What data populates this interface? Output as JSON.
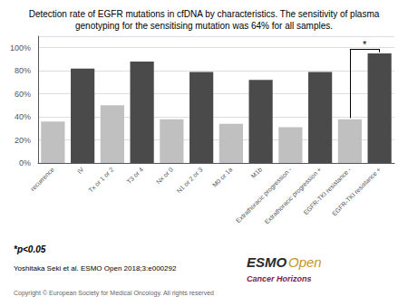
{
  "chart_data": {
    "type": "bar",
    "title": "Detection rate of EGFR mutations in cfDNA by characteristics. The sensitivity of plasma\ngenotyping for the sensitising mutation was 64% for all samples.",
    "categories": [
      "recurrence",
      "IV",
      "Tx or 1 or 2",
      "T3 or 4",
      "Nx or 0",
      "N1 or 2 or 3",
      "M0 or 1a",
      "M1b",
      "Extrathoracic progression -",
      "Extrathoracic progression +",
      "EGFR-TKI resistance -",
      "EGFR-TKI resistance +"
    ],
    "values": [
      0.36,
      0.82,
      0.5,
      0.88,
      0.38,
      0.79,
      0.34,
      0.72,
      0.31,
      0.79,
      0.38,
      0.95
    ],
    "colors": [
      "#c0c0c0",
      "#4a4a4a",
      "#c0c0c0",
      "#4a4a4a",
      "#c0c0c0",
      "#4a4a4a",
      "#c0c0c0",
      "#4a4a4a",
      "#c0c0c0",
      "#4a4a4a",
      "#c0c0c0",
      "#4a4a4a"
    ],
    "ylim": [
      0,
      1.1
    ],
    "yticks": [
      {
        "value": 0,
        "label": "0%"
      },
      {
        "value": 0.2,
        "label": "20%"
      },
      {
        "value": 0.4,
        "label": "40%"
      },
      {
        "value": 0.6,
        "label": "60%"
      },
      {
        "value": 0.8,
        "label": "80%"
      },
      {
        "value": 1.0,
        "label": "100%"
      }
    ],
    "grid": true,
    "annotations": [
      {
        "text": "*",
        "categories": [
          "EGFR-TKI resistance -",
          "EGFR-TKI resistance +"
        ]
      },
      {
        "text": "*p<0.05"
      },
      {
        "text": "Yoshitaka Seki et al. ESMO Open 2018;3:e000292"
      },
      {
        "text": "Copyright © European Society for Medical Oncology. All rights reserved"
      },
      {
        "text": "ESMO",
        "color": "#2b2b2b"
      },
      {
        "text": "Open",
        "color": "#c8961e"
      },
      {
        "text": "Cancer Horizons",
        "color": "#7a1f50"
      }
    ]
  }
}
